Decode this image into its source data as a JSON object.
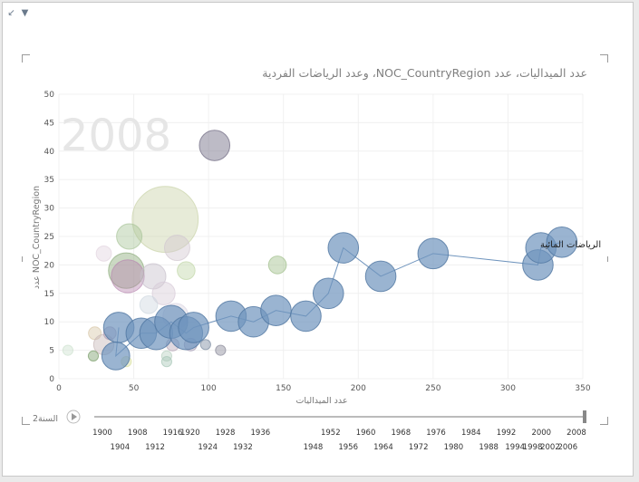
{
  "toolbar": {
    "expand_icon": "expand-icon",
    "filter_icon": "filter-icon"
  },
  "chart_data": {
    "type": "scatter",
    "subtype": "bubble",
    "title": "عدد الميداليات، عدد NOC_CountryRegion، وعدد الرياضات الفردية",
    "xlabel": "عدد الميداليات",
    "ylabel": "عدد NOC_CountryRegion",
    "xlim": [
      0,
      350
    ],
    "ylim": [
      0,
      50
    ],
    "xticks": [
      0,
      50,
      100,
      150,
      200,
      250,
      300,
      350
    ],
    "yticks": [
      0,
      5,
      10,
      15,
      20,
      25,
      30,
      35,
      40,
      45,
      50
    ],
    "grid": true,
    "play_axis_value": "2008",
    "selected_label": "الرياضات المائية",
    "highlight_color": "#6f94bd",
    "series": [
      {
        "name": "الرياضات المائية",
        "points": [
          {
            "x": 40,
            "y": 9,
            "r": 1.2
          },
          {
            "x": 38,
            "y": 4,
            "r": 1.1
          },
          {
            "x": 55,
            "y": 8,
            "r": 1.2
          },
          {
            "x": 65,
            "y": 8,
            "r": 1.3
          },
          {
            "x": 75,
            "y": 10,
            "r": 1.3
          },
          {
            "x": 85,
            "y": 8,
            "r": 1.3
          },
          {
            "x": 90,
            "y": 9,
            "r": 1.2
          },
          {
            "x": 115,
            "y": 11,
            "r": 1.2
          },
          {
            "x": 130,
            "y": 10,
            "r": 1.2
          },
          {
            "x": 145,
            "y": 12,
            "r": 1.2
          },
          {
            "x": 165,
            "y": 11,
            "r": 1.2
          },
          {
            "x": 180,
            "y": 15,
            "r": 1.2
          },
          {
            "x": 190,
            "y": 23,
            "r": 1.2
          },
          {
            "x": 215,
            "y": 18,
            "r": 1.2
          },
          {
            "x": 250,
            "y": 22,
            "r": 1.2
          },
          {
            "x": 320,
            "y": 20,
            "r": 1.2
          },
          {
            "x": 322,
            "y": 23,
            "r": 1.2
          },
          {
            "x": 336,
            "y": 24,
            "r": 1.2
          }
        ]
      }
    ]
  },
  "play_axis": {
    "label": "السنة2",
    "years_top": [
      "1900",
      "1908",
      "1916",
      "1920",
      "1928",
      "1936",
      "1952",
      "1960",
      "1968",
      "1976",
      "1984",
      "1992",
      "2000",
      "2008"
    ],
    "years_bottom": [
      "1904",
      "1912",
      "1924",
      "1932",
      "1948",
      "1956",
      "1964",
      "1972",
      "1980",
      "1988",
      "1994",
      "1998",
      "2002",
      "2006"
    ]
  }
}
